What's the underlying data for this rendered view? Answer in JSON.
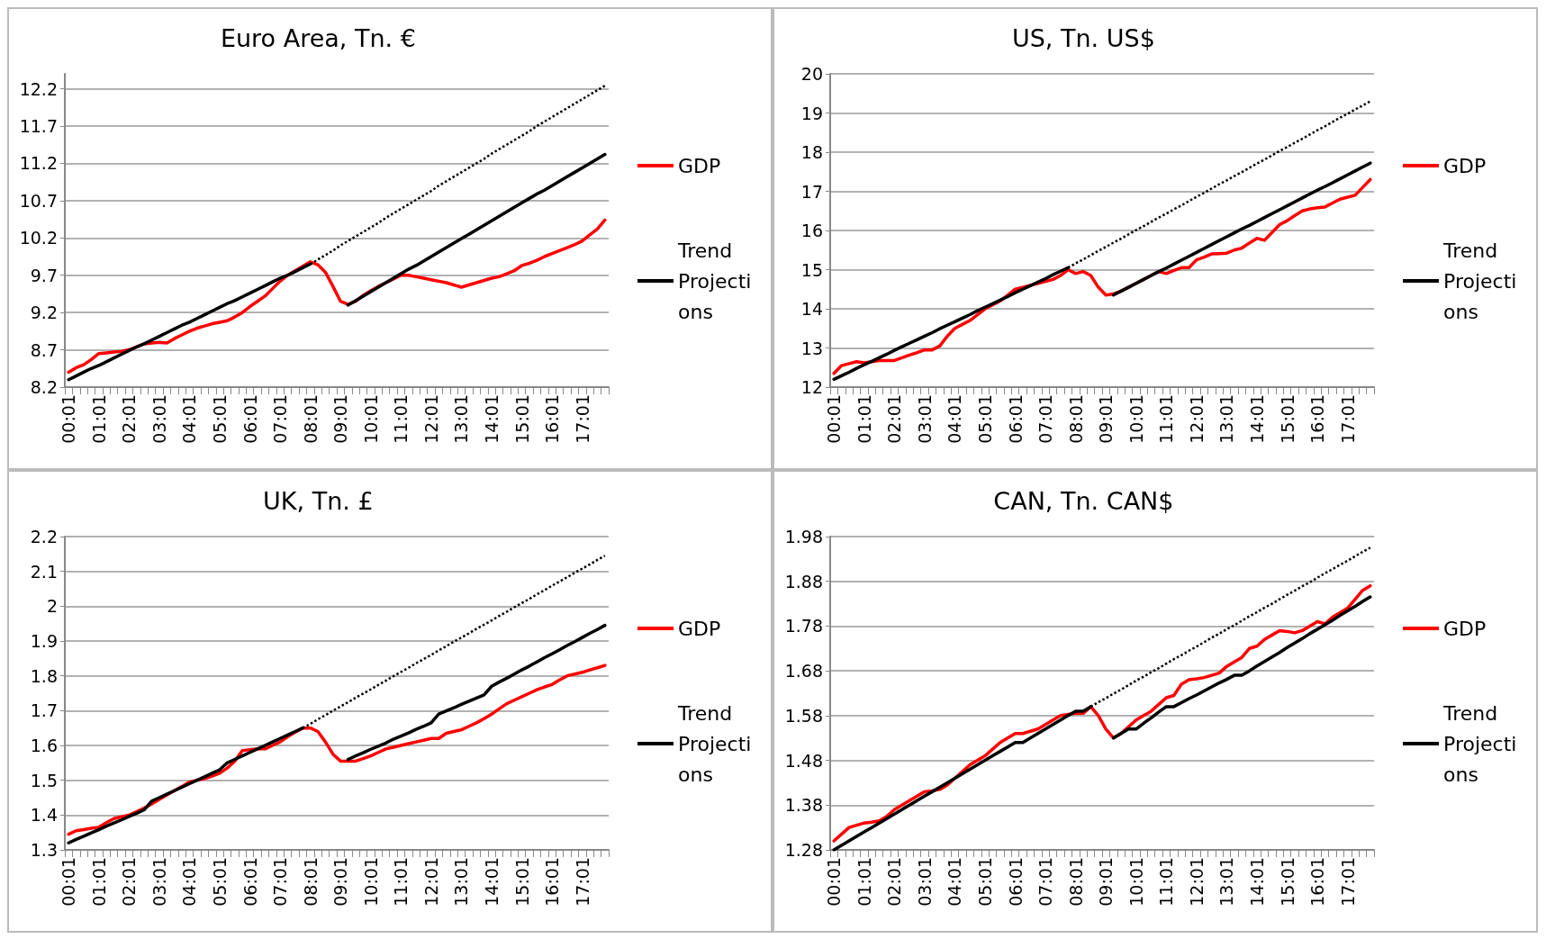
{
  "chart_data": [
    {
      "type": "line",
      "title": "Euro Area, Tn. €",
      "categories": [
        "00:01",
        null,
        null,
        null,
        "01:01",
        null,
        null,
        null,
        "02:01",
        null,
        null,
        null,
        "03:01",
        null,
        null,
        null,
        "04:01",
        null,
        null,
        null,
        "05:01",
        null,
        null,
        null,
        "06:01",
        null,
        null,
        null,
        "07:01",
        null,
        null,
        null,
        "08:01",
        null,
        null,
        null,
        "09:01",
        null,
        null,
        null,
        "10:01",
        null,
        null,
        null,
        "11:01",
        null,
        null,
        null,
        "12:01",
        null,
        null,
        null,
        "13:01",
        null,
        null,
        null,
        "14:01",
        null,
        null,
        null,
        "15:01",
        null,
        null,
        null,
        "16:01",
        null,
        null,
        null,
        "17:01",
        null,
        null,
        null
      ],
      "ylim": [
        8.2,
        12.4
      ],
      "yticks": [
        8.2,
        8.7,
        9.2,
        9.7,
        10.2,
        10.7,
        11.2,
        11.7,
        12.2
      ],
      "grid": "y",
      "legend": "right",
      "marker": "none",
      "series": [
        {
          "name": "GDP",
          "color": "#ff0000",
          "values": [
            8.4,
            8.46,
            8.5,
            8.57,
            8.65,
            8.66,
            8.67,
            8.68,
            8.7,
            8.74,
            8.78,
            8.79,
            8.8,
            8.79,
            8.85,
            8.9,
            8.95,
            8.99,
            9.02,
            9.05,
            9.07,
            9.09,
            9.14,
            9.2,
            9.28,
            9.35,
            9.42,
            9.52,
            9.62,
            9.7,
            9.76,
            9.82,
            9.88,
            9.84,
            9.74,
            9.55,
            9.35,
            9.31,
            9.35,
            9.43,
            9.49,
            9.55,
            9.6,
            9.65,
            9.7,
            9.7,
            9.68,
            9.66,
            9.64,
            9.62,
            9.6,
            9.57,
            9.54,
            9.57,
            9.6,
            9.63,
            9.66,
            9.68,
            9.72,
            9.76,
            9.83,
            9.86,
            9.9,
            9.95,
            9.99,
            10.03,
            10.07,
            10.11,
            10.16,
            10.24,
            10.32,
            10.44
          ]
        },
        {
          "name": "Trend Projections",
          "color": "#000000",
          "values": [
            8.3,
            8.35,
            8.4,
            8.45,
            8.49,
            8.54,
            8.59,
            8.64,
            8.69,
            8.74,
            8.78,
            8.83,
            8.88,
            8.93,
            8.98,
            9.03,
            9.07,
            9.12,
            9.17,
            9.22,
            9.27,
            9.32,
            9.36,
            9.41,
            9.46,
            9.51,
            9.56,
            9.61,
            9.66,
            9.7,
            9.75,
            9.8,
            9.85,
            null,
            null,
            null,
            null,
            9.3,
            9.36,
            9.42,
            9.48,
            9.54,
            9.6,
            9.66,
            9.72,
            9.78,
            9.83,
            9.89,
            9.95,
            10.01,
            10.07,
            10.13,
            10.19,
            10.25,
            10.31,
            10.37,
            10.43,
            10.49,
            10.55,
            10.61,
            10.67,
            10.73,
            10.79,
            10.84,
            10.9,
            10.96,
            11.02,
            11.08,
            11.14,
            11.2,
            11.26,
            11.32
          ]
        },
        {
          "color": "#000000",
          "line_style": "dotted",
          "values": [
            null,
            null,
            null,
            null,
            null,
            null,
            null,
            null,
            null,
            null,
            null,
            null,
            null,
            null,
            null,
            null,
            null,
            null,
            null,
            null,
            null,
            null,
            null,
            null,
            null,
            null,
            null,
            null,
            null,
            null,
            null,
            null,
            9.85,
            9.91,
            9.97,
            10.03,
            10.1,
            10.16,
            10.22,
            10.28,
            10.34,
            10.4,
            10.47,
            10.53,
            10.59,
            10.65,
            10.71,
            10.77,
            10.83,
            10.9,
            10.96,
            11.02,
            11.08,
            11.14,
            11.2,
            11.26,
            11.33,
            11.39,
            11.45,
            11.51,
            11.57,
            11.63,
            11.7,
            11.76,
            11.82,
            11.88,
            11.94,
            12.0,
            12.06,
            12.12,
            12.18,
            12.24
          ]
        }
      ]
    },
    {
      "type": "line",
      "title": "US, Tn. US$",
      "categories": [
        "00:01",
        null,
        null,
        null,
        "01:01",
        null,
        null,
        null,
        "02:01",
        null,
        null,
        null,
        "03:01",
        null,
        null,
        null,
        "04:01",
        null,
        null,
        null,
        "05:01",
        null,
        null,
        null,
        "06:01",
        null,
        null,
        null,
        "07:01",
        null,
        null,
        null,
        "08:01",
        null,
        null,
        null,
        "09:01",
        null,
        null,
        null,
        "10:01",
        null,
        null,
        null,
        "11:01",
        null,
        null,
        null,
        "12:01",
        null,
        null,
        null,
        "13:01",
        null,
        null,
        null,
        "14:01",
        null,
        null,
        null,
        "15:01",
        null,
        null,
        null,
        "16:01",
        null,
        null,
        null,
        "17:01",
        null,
        null,
        null
      ],
      "ylim": [
        12,
        20
      ],
      "yticks": [
        12,
        13,
        14,
        15,
        16,
        17,
        18,
        19,
        20
      ],
      "grid": "y",
      "legend": "right",
      "marker": "none",
      "series": [
        {
          "name": "GDP",
          "color": "#ff0000",
          "values": [
            12.35,
            12.55,
            12.6,
            12.65,
            12.62,
            12.65,
            12.68,
            12.68,
            12.68,
            12.75,
            12.82,
            12.88,
            12.95,
            12.95,
            13.05,
            13.3,
            13.5,
            13.6,
            13.7,
            13.85,
            14.0,
            14.1,
            14.2,
            14.35,
            14.5,
            14.55,
            14.6,
            14.65,
            14.7,
            14.75,
            14.85,
            15.0,
            14.9,
            14.95,
            14.85,
            14.55,
            14.35,
            14.38,
            14.45,
            14.55,
            14.65,
            14.75,
            14.85,
            14.95,
            14.9,
            14.98,
            15.05,
            15.05,
            15.25,
            15.32,
            15.4,
            15.41,
            15.42,
            15.5,
            15.55,
            15.68,
            15.8,
            15.75,
            15.95,
            16.15,
            16.25,
            16.38,
            16.5,
            16.55,
            16.58,
            16.6,
            16.7,
            16.8,
            16.85,
            16.9,
            17.1,
            17.3
          ]
        },
        {
          "name": "Trend Projections",
          "color": "#000000",
          "values": [
            12.2,
            12.29,
            12.38,
            12.48,
            12.57,
            12.66,
            12.75,
            12.84,
            12.94,
            13.03,
            13.12,
            13.21,
            13.3,
            13.39,
            13.49,
            13.58,
            13.67,
            13.76,
            13.85,
            13.95,
            14.04,
            14.13,
            14.22,
            14.31,
            14.41,
            14.5,
            14.59,
            14.68,
            14.77,
            14.87,
            14.96,
            15.05,
            null,
            null,
            null,
            null,
            null,
            14.35,
            14.45,
            14.55,
            14.65,
            14.75,
            14.85,
            14.95,
            15.04,
            15.14,
            15.24,
            15.34,
            15.44,
            15.54,
            15.64,
            15.74,
            15.84,
            15.94,
            16.04,
            16.13,
            16.23,
            16.33,
            16.43,
            16.53,
            16.63,
            16.73,
            16.83,
            16.93,
            17.03,
            17.12,
            17.22,
            17.32,
            17.42,
            17.52,
            17.62,
            17.72
          ]
        },
        {
          "color": "#000000",
          "line_style": "dotted",
          "values": [
            null,
            null,
            null,
            null,
            null,
            null,
            null,
            null,
            null,
            null,
            null,
            null,
            null,
            null,
            null,
            null,
            null,
            null,
            null,
            null,
            null,
            null,
            null,
            null,
            null,
            null,
            null,
            null,
            null,
            null,
            null,
            15.05,
            15.16,
            15.26,
            15.37,
            15.48,
            15.58,
            15.69,
            15.79,
            15.9,
            16.01,
            16.11,
            16.22,
            16.33,
            16.43,
            16.54,
            16.64,
            16.75,
            16.86,
            16.96,
            17.07,
            17.18,
            17.28,
            17.39,
            17.49,
            17.6,
            17.71,
            17.81,
            17.92,
            18.03,
            18.13,
            18.24,
            18.34,
            18.45,
            18.56,
            18.66,
            18.77,
            18.88,
            18.98,
            19.09,
            19.19,
            19.3
          ]
        }
      ]
    },
    {
      "type": "line",
      "title": "UK, Tn. £",
      "categories": [
        "00:01",
        null,
        null,
        null,
        "01:01",
        null,
        null,
        null,
        "02:01",
        null,
        null,
        null,
        "03:01",
        null,
        null,
        null,
        "04:01",
        null,
        null,
        null,
        "05:01",
        null,
        null,
        null,
        "06:01",
        null,
        null,
        null,
        "07:01",
        null,
        null,
        null,
        "08:01",
        null,
        null,
        null,
        "09:01",
        null,
        null,
        null,
        "10:01",
        null,
        null,
        null,
        "11:01",
        null,
        null,
        null,
        "12:01",
        null,
        null,
        null,
        "13:01",
        null,
        null,
        null,
        "14:01",
        null,
        null,
        null,
        "15:01",
        null,
        null,
        null,
        "16:01",
        null,
        null,
        null,
        "17:01",
        null,
        null,
        null
      ],
      "ylim": [
        1.3,
        2.2
      ],
      "yticks": [
        1.3,
        1.4,
        1.5,
        1.6,
        1.7,
        1.8,
        1.9,
        2,
        2.1,
        2.2
      ],
      "grid": "y",
      "legend": "right",
      "marker": "none",
      "series": [
        {
          "name": "GDP",
          "color": "#ff0000",
          "values": [
            1.345,
            1.355,
            1.358,
            1.362,
            1.365,
            1.378,
            1.39,
            1.395,
            1.4,
            1.41,
            1.42,
            1.432,
            1.445,
            1.458,
            1.47,
            1.482,
            1.495,
            1.5,
            1.505,
            1.512,
            1.52,
            1.535,
            1.555,
            1.585,
            1.588,
            1.59,
            1.59,
            1.6,
            1.61,
            1.625,
            1.638,
            1.65,
            1.65,
            1.64,
            1.61,
            1.575,
            1.555,
            1.555,
            1.555,
            1.562,
            1.57,
            1.58,
            1.59,
            1.595,
            1.6,
            1.605,
            1.61,
            1.615,
            1.62,
            1.62,
            1.635,
            1.64,
            1.645,
            1.655,
            1.665,
            1.677,
            1.69,
            1.705,
            1.72,
            1.73,
            1.74,
            1.75,
            1.76,
            1.768,
            1.775,
            1.788,
            1.8,
            1.805,
            1.81,
            1.817,
            1.823,
            1.83
          ]
        },
        {
          "name": "Trend Projections",
          "color": "#000000",
          "values": [
            1.32,
            1.33,
            1.339,
            1.349,
            1.358,
            1.368,
            1.377,
            1.386,
            1.396,
            1.405,
            1.415,
            1.44,
            1.45,
            1.46,
            1.47,
            1.48,
            1.49,
            1.5,
            1.51,
            1.52,
            1.53,
            1.55,
            1.56,
            1.57,
            1.58,
            1.59,
            1.6,
            1.61,
            1.62,
            1.63,
            1.64,
            1.65,
            null,
            null,
            null,
            null,
            null,
            1.56,
            1.57,
            1.579,
            1.589,
            1.598,
            1.607,
            1.618,
            1.627,
            1.636,
            1.646,
            1.655,
            1.665,
            1.69,
            1.699,
            1.708,
            1.718,
            1.727,
            1.736,
            1.745,
            1.77,
            1.782,
            1.793,
            1.805,
            1.817,
            1.828,
            1.84,
            1.852,
            1.863,
            1.875,
            1.887,
            1.898,
            1.91,
            1.922,
            1.933,
            1.945
          ]
        },
        {
          "color": "#000000",
          "line_style": "dotted",
          "values": [
            null,
            null,
            null,
            null,
            null,
            null,
            null,
            null,
            null,
            null,
            null,
            null,
            null,
            null,
            null,
            null,
            null,
            null,
            null,
            null,
            null,
            null,
            null,
            null,
            null,
            null,
            null,
            null,
            null,
            null,
            null,
            1.65,
            1.662,
            1.675,
            1.687,
            1.7,
            1.712,
            1.724,
            1.737,
            1.749,
            1.761,
            1.774,
            1.786,
            1.799,
            1.811,
            1.823,
            1.836,
            1.848,
            1.86,
            1.873,
            1.885,
            1.898,
            1.91,
            1.922,
            1.935,
            1.947,
            1.959,
            1.972,
            1.984,
            1.997,
            2.009,
            2.021,
            2.034,
            2.046,
            2.059,
            2.071,
            2.083,
            2.096,
            2.108,
            2.12,
            2.133,
            2.145
          ]
        }
      ]
    },
    {
      "type": "line",
      "title": "CAN, Tn. CAN$",
      "categories": [
        "00:01",
        null,
        null,
        null,
        "01:01",
        null,
        null,
        null,
        "02:01",
        null,
        null,
        null,
        "03:01",
        null,
        null,
        null,
        "04:01",
        null,
        null,
        null,
        "05:01",
        null,
        null,
        null,
        "06:01",
        null,
        null,
        null,
        "07:01",
        null,
        null,
        null,
        "08:01",
        null,
        null,
        null,
        "09:01",
        null,
        null,
        null,
        "10:01",
        null,
        null,
        null,
        "11:01",
        null,
        null,
        null,
        "12:01",
        null,
        null,
        null,
        "13:01",
        null,
        null,
        null,
        "14:01",
        null,
        null,
        null,
        "15:01",
        null,
        null,
        null,
        "16:01",
        null,
        null,
        null,
        "17:01",
        null,
        null,
        null
      ],
      "ylim": [
        1.28,
        1.98
      ],
      "yticks": [
        1.28,
        1.38,
        1.48,
        1.58,
        1.68,
        1.78,
        1.88,
        1.98
      ],
      "grid": "y",
      "legend": "right",
      "marker": "none",
      "series": [
        {
          "name": "GDP",
          "color": "#ff0000",
          "values": [
            1.3,
            1.315,
            1.33,
            1.335,
            1.34,
            1.342,
            1.345,
            1.355,
            1.37,
            1.38,
            1.39,
            1.4,
            1.41,
            1.412,
            1.415,
            1.425,
            1.44,
            1.455,
            1.47,
            1.48,
            1.49,
            1.505,
            1.52,
            1.53,
            1.54,
            1.54,
            1.545,
            1.55,
            1.56,
            1.57,
            1.58,
            1.583,
            1.585,
            1.585,
            1.6,
            1.58,
            1.55,
            1.53,
            1.54,
            1.555,
            1.57,
            1.58,
            1.59,
            1.605,
            1.62,
            1.625,
            1.65,
            1.66,
            1.662,
            1.665,
            1.67,
            1.675,
            1.69,
            1.7,
            1.71,
            1.73,
            1.735,
            1.75,
            1.76,
            1.77,
            1.768,
            1.765,
            1.77,
            1.78,
            1.79,
            1.785,
            1.8,
            1.81,
            1.82,
            1.84,
            1.86,
            1.87
          ]
        },
        {
          "name": "Trend Projections",
          "color": "#000000",
          "values": [
            1.28,
            1.29,
            1.3,
            1.31,
            1.32,
            1.33,
            1.34,
            1.35,
            1.36,
            1.37,
            1.38,
            1.39,
            1.4,
            1.41,
            1.42,
            1.43,
            1.44,
            1.45,
            1.46,
            1.47,
            1.48,
            1.49,
            1.5,
            1.51,
            1.52,
            1.52,
            1.53,
            1.54,
            1.55,
            1.56,
            1.57,
            1.58,
            1.59,
            1.59,
            1.6,
            null,
            null,
            1.53,
            1.54,
            1.55,
            1.55,
            1.563,
            1.575,
            1.588,
            1.6,
            1.6,
            1.609,
            1.618,
            1.626,
            1.635,
            1.644,
            1.653,
            1.661,
            1.67,
            1.67,
            1.68,
            1.691,
            1.701,
            1.711,
            1.721,
            1.732,
            1.742,
            1.752,
            1.763,
            1.773,
            1.783,
            1.793,
            1.804,
            1.814,
            1.824,
            1.835,
            1.845
          ]
        },
        {
          "color": "#000000",
          "line_style": "dotted",
          "values": [
            null,
            null,
            null,
            null,
            null,
            null,
            null,
            null,
            null,
            null,
            null,
            null,
            null,
            null,
            null,
            null,
            null,
            null,
            null,
            null,
            null,
            null,
            null,
            null,
            null,
            null,
            null,
            null,
            null,
            null,
            null,
            null,
            null,
            null,
            1.6,
            1.61,
            1.619,
            1.629,
            1.638,
            1.648,
            1.658,
            1.667,
            1.677,
            1.686,
            1.696,
            1.706,
            1.715,
            1.725,
            1.734,
            1.744,
            1.754,
            1.763,
            1.773,
            1.782,
            1.792,
            1.802,
            1.811,
            1.821,
            1.83,
            1.84,
            1.85,
            1.859,
            1.869,
            1.878,
            1.888,
            1.898,
            1.907,
            1.917,
            1.926,
            1.936,
            1.946,
            1.955
          ]
        }
      ]
    }
  ]
}
